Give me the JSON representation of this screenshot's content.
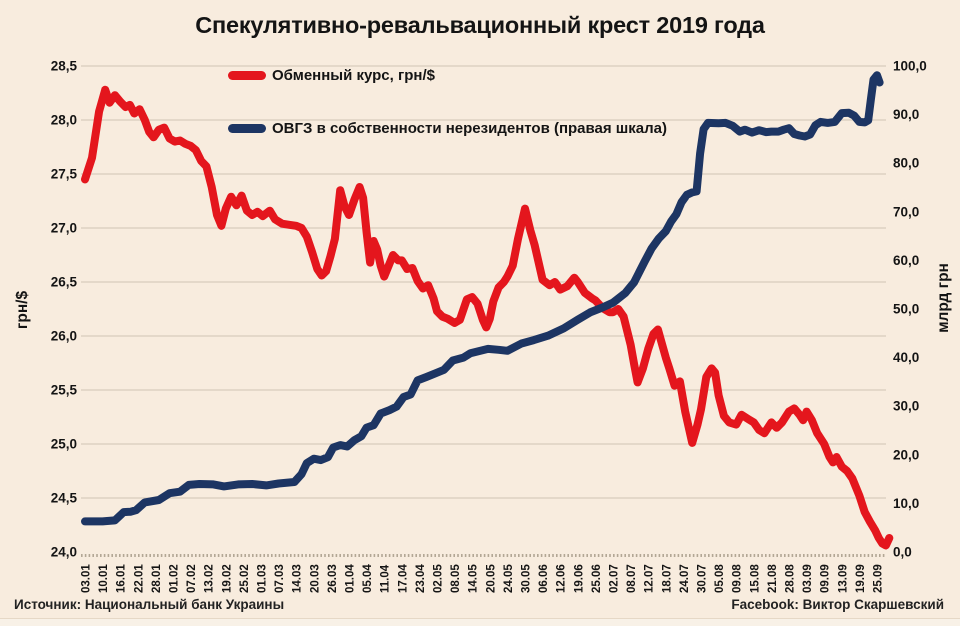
{
  "footer": {
    "source": "Источник: Национальный банк Украины",
    "credit": "Facebook: Виктор Скаршевский"
  },
  "colors": {
    "background": "#f8ecde",
    "grid": "#d8ccbd",
    "axis_dotted": "#b3a795",
    "text": "#141414",
    "red_series": "#e4161d",
    "navy_series": "#1d3563"
  },
  "chart_data": {
    "type": "line",
    "title": "Спекулятивно-ревальвационный крест 2019 года",
    "grid": true,
    "legend_position": "inside-top-left",
    "x_tick_labels": [
      "03.01",
      "10.01",
      "16.01",
      "22.01",
      "28.01",
      "01.02",
      "07.02",
      "13.02",
      "19.02",
      "25.02",
      "01.03",
      "07.03",
      "14.03",
      "20.03",
      "26.03",
      "01.04",
      "05.04",
      "11.04",
      "17.04",
      "23.04",
      "02.05",
      "08.05",
      "14.05",
      "20.05",
      "24.05",
      "30.05",
      "06.06",
      "12.06",
      "19.06",
      "25.06",
      "02.07",
      "08.07",
      "12.07",
      "18.07",
      "24.07",
      "30.07",
      "05.08",
      "09.08",
      "15.08",
      "21.08",
      "28.08",
      "03.09",
      "09.09",
      "13.09",
      "19.09",
      "25.09"
    ],
    "left_axis": {
      "title": "грн/$",
      "min": 24.0,
      "max": 28.5,
      "step": 0.5,
      "tick_labels": [
        "28,5",
        "28,0",
        "27,5",
        "27,0",
        "26,5",
        "26,0",
        "25,5",
        "25,0",
        "24,5",
        "24,0"
      ]
    },
    "right_axis": {
      "title": "млрд грн",
      "min": 0.0,
      "max": 100.0,
      "step": 10.0,
      "tick_labels": [
        "100,0",
        "90,0",
        "80,0",
        "70,0",
        "60,0",
        "50,0",
        "40,0",
        "30,0",
        "20,0",
        "10,0",
        "0,0"
      ]
    },
    "series": [
      {
        "name": "Обменный курс, грн/$",
        "axis": "left",
        "color": "#e4161d",
        "points": [
          [
            0,
            27.45
          ],
          [
            0.4,
            27.65
          ],
          [
            0.8,
            28.08
          ],
          [
            1.15,
            28.28
          ],
          [
            1.4,
            28.16
          ],
          [
            1.7,
            28.23
          ],
          [
            2.0,
            28.17
          ],
          [
            2.3,
            28.12
          ],
          [
            2.55,
            28.14
          ],
          [
            2.8,
            28.06
          ],
          [
            3.1,
            28.1
          ],
          [
            3.4,
            28.0
          ],
          [
            3.65,
            27.89
          ],
          [
            3.9,
            27.84
          ],
          [
            4.2,
            27.91
          ],
          [
            4.5,
            27.93
          ],
          [
            4.8,
            27.83
          ],
          [
            5.1,
            27.8
          ],
          [
            5.4,
            27.81
          ],
          [
            5.7,
            27.78
          ],
          [
            6.0,
            27.76
          ],
          [
            6.3,
            27.72
          ],
          [
            6.6,
            27.62
          ],
          [
            6.9,
            27.57
          ],
          [
            7.2,
            27.38
          ],
          [
            7.5,
            27.12
          ],
          [
            7.75,
            27.02
          ],
          [
            8.0,
            27.18
          ],
          [
            8.3,
            27.29
          ],
          [
            8.6,
            27.21
          ],
          [
            8.9,
            27.3
          ],
          [
            9.2,
            27.16
          ],
          [
            9.5,
            27.12
          ],
          [
            9.8,
            27.15
          ],
          [
            10.1,
            27.11
          ],
          [
            10.5,
            27.16
          ],
          [
            10.8,
            27.08
          ],
          [
            11.2,
            27.04
          ],
          [
            11.6,
            27.03
          ],
          [
            12.0,
            27.02
          ],
          [
            12.3,
            27.0
          ],
          [
            12.6,
            26.92
          ],
          [
            12.9,
            26.78
          ],
          [
            13.2,
            26.62
          ],
          [
            13.45,
            26.56
          ],
          [
            13.7,
            26.6
          ],
          [
            13.95,
            26.74
          ],
          [
            14.2,
            26.9
          ],
          [
            14.5,
            27.35
          ],
          [
            14.75,
            27.2
          ],
          [
            15.0,
            27.12
          ],
          [
            15.3,
            27.26
          ],
          [
            15.6,
            27.38
          ],
          [
            15.8,
            27.28
          ],
          [
            16.0,
            26.96
          ],
          [
            16.2,
            26.68
          ],
          [
            16.4,
            26.88
          ],
          [
            16.6,
            26.8
          ],
          [
            16.8,
            26.65
          ],
          [
            17.0,
            26.55
          ],
          [
            17.3,
            26.67
          ],
          [
            17.5,
            26.75
          ],
          [
            17.8,
            26.7
          ],
          [
            18.0,
            26.7
          ],
          [
            18.3,
            26.62
          ],
          [
            18.6,
            26.63
          ],
          [
            18.9,
            26.51
          ],
          [
            19.2,
            26.44
          ],
          [
            19.5,
            26.47
          ],
          [
            19.8,
            26.35
          ],
          [
            20.0,
            26.23
          ],
          [
            20.3,
            26.18
          ],
          [
            20.6,
            26.16
          ],
          [
            21.0,
            26.12
          ],
          [
            21.3,
            26.15
          ],
          [
            21.7,
            26.34
          ],
          [
            22.0,
            26.36
          ],
          [
            22.3,
            26.3
          ],
          [
            22.6,
            26.15
          ],
          [
            22.8,
            26.08
          ],
          [
            23.0,
            26.16
          ],
          [
            23.2,
            26.32
          ],
          [
            23.5,
            26.45
          ],
          [
            23.8,
            26.5
          ],
          [
            24.0,
            26.55
          ],
          [
            24.3,
            26.65
          ],
          [
            24.6,
            26.9
          ],
          [
            25.0,
            27.18
          ],
          [
            25.3,
            26.98
          ],
          [
            25.55,
            26.84
          ],
          [
            26.0,
            26.52
          ],
          [
            26.4,
            26.47
          ],
          [
            26.7,
            26.5
          ],
          [
            27.0,
            26.43
          ],
          [
            27.4,
            26.46
          ],
          [
            27.8,
            26.54
          ],
          [
            28.0,
            26.5
          ],
          [
            28.4,
            26.4
          ],
          [
            28.8,
            26.35
          ],
          [
            29.0,
            26.33
          ],
          [
            29.4,
            26.26
          ],
          [
            29.8,
            26.22
          ],
          [
            30.0,
            26.22
          ],
          [
            30.3,
            26.25
          ],
          [
            30.6,
            26.18
          ],
          [
            31.0,
            25.92
          ],
          [
            31.2,
            25.74
          ],
          [
            31.4,
            25.57
          ],
          [
            31.7,
            25.7
          ],
          [
            32.0,
            25.88
          ],
          [
            32.3,
            26.02
          ],
          [
            32.55,
            26.06
          ],
          [
            33.0,
            25.8
          ],
          [
            33.2,
            25.7
          ],
          [
            33.5,
            25.54
          ],
          [
            33.8,
            25.58
          ],
          [
            34.1,
            25.3
          ],
          [
            34.5,
            25.01
          ],
          [
            34.8,
            25.18
          ],
          [
            35.0,
            25.32
          ],
          [
            35.3,
            25.62
          ],
          [
            35.6,
            25.7
          ],
          [
            35.8,
            25.66
          ],
          [
            36.0,
            25.45
          ],
          [
            36.3,
            25.26
          ],
          [
            36.6,
            25.2
          ],
          [
            37.0,
            25.18
          ],
          [
            37.3,
            25.27
          ],
          [
            37.7,
            25.23
          ],
          [
            38.0,
            25.2
          ],
          [
            38.3,
            25.13
          ],
          [
            38.6,
            25.1
          ],
          [
            39.0,
            25.2
          ],
          [
            39.3,
            25.15
          ],
          [
            39.6,
            25.2
          ],
          [
            40.0,
            25.3
          ],
          [
            40.3,
            25.33
          ],
          [
            40.6,
            25.27
          ],
          [
            40.8,
            25.22
          ],
          [
            41.0,
            25.3
          ],
          [
            41.3,
            25.22
          ],
          [
            41.6,
            25.1
          ],
          [
            42.0,
            25.0
          ],
          [
            42.3,
            24.88
          ],
          [
            42.5,
            24.83
          ],
          [
            42.7,
            24.88
          ],
          [
            43.0,
            24.79
          ],
          [
            43.3,
            24.75
          ],
          [
            43.6,
            24.68
          ],
          [
            44.0,
            24.52
          ],
          [
            44.3,
            24.37
          ],
          [
            44.6,
            24.28
          ],
          [
            44.9,
            24.2
          ],
          [
            45.1,
            24.13
          ],
          [
            45.3,
            24.08
          ],
          [
            45.5,
            24.06
          ],
          [
            45.7,
            24.13
          ]
        ]
      },
      {
        "name": "ОВГЗ в собственности нерезидентов (правая шкала)",
        "axis": "right",
        "color": "#1d3563",
        "points": [
          [
            0,
            6.3
          ],
          [
            1.0,
            6.3
          ],
          [
            1.7,
            6.5
          ],
          [
            2.2,
            8.2
          ],
          [
            2.6,
            8.3
          ],
          [
            2.9,
            8.6
          ],
          [
            3.4,
            10.2
          ],
          [
            4.2,
            10.7
          ],
          [
            4.8,
            12.1
          ],
          [
            5.4,
            12.4
          ],
          [
            5.9,
            13.8
          ],
          [
            6.5,
            14.0
          ],
          [
            7.3,
            13.9
          ],
          [
            7.9,
            13.5
          ],
          [
            8.7,
            13.9
          ],
          [
            9.5,
            14.0
          ],
          [
            10.3,
            13.7
          ],
          [
            11.0,
            14.1
          ],
          [
            11.9,
            14.4
          ],
          [
            12.3,
            16.0
          ],
          [
            12.6,
            18.3
          ],
          [
            13.0,
            19.2
          ],
          [
            13.4,
            18.9
          ],
          [
            13.8,
            19.5
          ],
          [
            14.1,
            21.5
          ],
          [
            14.5,
            22.0
          ],
          [
            14.9,
            21.7
          ],
          [
            15.3,
            23.0
          ],
          [
            15.7,
            23.8
          ],
          [
            16.0,
            25.6
          ],
          [
            16.4,
            26.1
          ],
          [
            16.8,
            28.5
          ],
          [
            17.3,
            29.2
          ],
          [
            17.7,
            29.9
          ],
          [
            18.1,
            31.9
          ],
          [
            18.5,
            32.4
          ],
          [
            18.9,
            35.3
          ],
          [
            19.4,
            36.0
          ],
          [
            20.0,
            36.9
          ],
          [
            20.4,
            37.5
          ],
          [
            20.9,
            39.4
          ],
          [
            21.5,
            40.0
          ],
          [
            21.9,
            40.9
          ],
          [
            22.9,
            41.8
          ],
          [
            23.5,
            41.6
          ],
          [
            24.0,
            41.4
          ],
          [
            24.8,
            42.9
          ],
          [
            25.5,
            43.6
          ],
          [
            26.3,
            44.5
          ],
          [
            27.2,
            46.0
          ],
          [
            28.0,
            47.8
          ],
          [
            28.7,
            49.3
          ],
          [
            29.4,
            50.3
          ],
          [
            30.0,
            51.3
          ],
          [
            30.7,
            53.3
          ],
          [
            31.2,
            55.5
          ],
          [
            31.8,
            59.8
          ],
          [
            32.2,
            62.5
          ],
          [
            32.6,
            64.5
          ],
          [
            33.0,
            66.0
          ],
          [
            33.3,
            68.0
          ],
          [
            33.6,
            69.5
          ],
          [
            33.9,
            72.0
          ],
          [
            34.2,
            73.5
          ],
          [
            34.5,
            74.0
          ],
          [
            34.75,
            74.2
          ],
          [
            34.95,
            82.0
          ],
          [
            35.15,
            87.0
          ],
          [
            35.4,
            88.3
          ],
          [
            36.0,
            88.2
          ],
          [
            36.4,
            88.3
          ],
          [
            36.8,
            87.7
          ],
          [
            37.2,
            86.5
          ],
          [
            37.5,
            86.9
          ],
          [
            37.9,
            86.3
          ],
          [
            38.3,
            86.8
          ],
          [
            38.7,
            86.4
          ],
          [
            39.0,
            86.5
          ],
          [
            39.4,
            86.5
          ],
          [
            39.7,
            86.9
          ],
          [
            40.0,
            87.2
          ],
          [
            40.3,
            86.0
          ],
          [
            40.6,
            85.7
          ],
          [
            40.9,
            85.5
          ],
          [
            41.2,
            85.9
          ],
          [
            41.5,
            87.8
          ],
          [
            41.8,
            88.5
          ],
          [
            42.2,
            88.3
          ],
          [
            42.6,
            88.5
          ],
          [
            43.0,
            90.3
          ],
          [
            43.4,
            90.4
          ],
          [
            43.7,
            89.8
          ],
          [
            44.0,
            88.5
          ],
          [
            44.3,
            88.4
          ],
          [
            44.5,
            88.8
          ],
          [
            44.65,
            93.0
          ],
          [
            44.8,
            97.2
          ],
          [
            45.0,
            98.1
          ],
          [
            45.15,
            96.6
          ]
        ]
      }
    ]
  }
}
